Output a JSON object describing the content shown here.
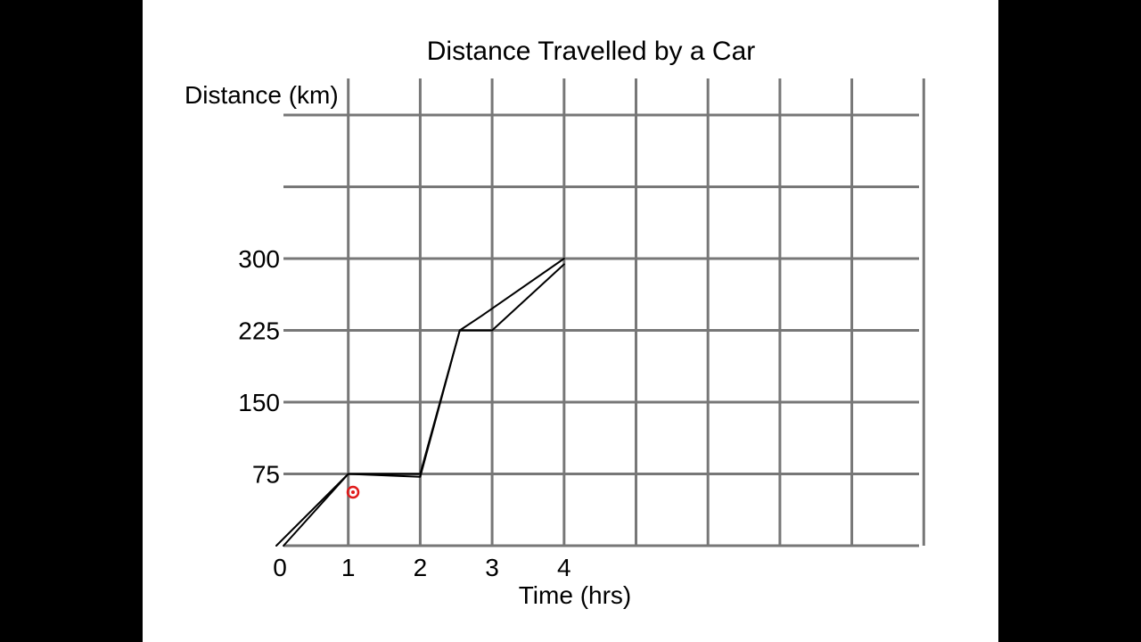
{
  "colors": {
    "background": "#000000",
    "slide": "#ffffff",
    "grid": "#777777",
    "line": "#000000",
    "cursor": "#e11b1b"
  },
  "chart_data": {
    "type": "line",
    "title": "Distance Travelled by a Car",
    "xlabel": "Time (hrs)",
    "ylabel": "Distance (km)",
    "x_ticks": [
      "0",
      "1",
      "2",
      "3",
      "4"
    ],
    "y_ticks": [
      "75",
      "150",
      "225",
      "300"
    ],
    "xlim": [
      0,
      9
    ],
    "ylim": [
      0,
      450
    ],
    "grid": true,
    "series": [
      {
        "x": [
          0,
          1,
          2,
          2.55,
          2.85,
          4
        ],
        "y": [
          0,
          75,
          75,
          225,
          240,
          300
        ]
      },
      {
        "x": [
          0.1,
          1,
          2,
          2.55,
          3.0,
          4
        ],
        "y": [
          0,
          75,
          72,
          225,
          225,
          294
        ]
      }
    ]
  }
}
